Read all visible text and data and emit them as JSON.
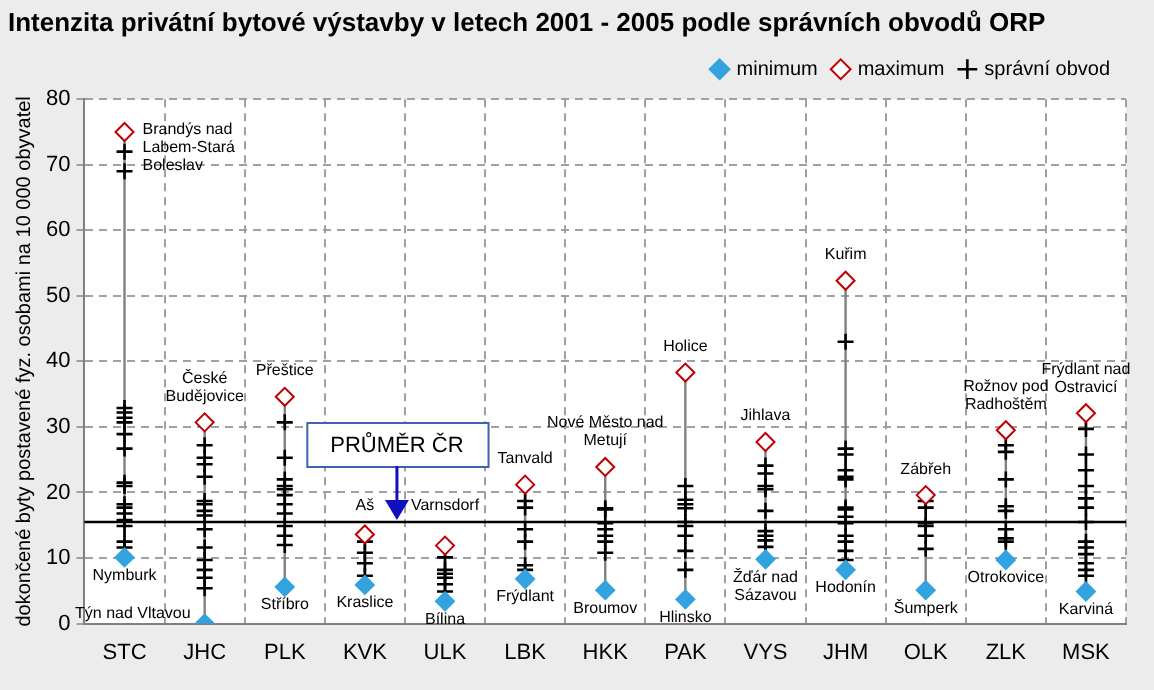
{
  "chart_data": {
    "type": "scatter",
    "title": "Intenzita privátní bytové výstavby v letech 2001 - 2005 podle správních obvodů ORP",
    "ylabel": "dokončené byty postavené fyz. osobami na 10 000 obyvatel",
    "categories": [
      "STC",
      "JHC",
      "PLK",
      "KVK",
      "ULK",
      "LBK",
      "HKK",
      "PAK",
      "VYS",
      "JHM",
      "OLK",
      "ZLK",
      "MSK"
    ],
    "ylim": [
      0,
      80
    ],
    "yticks": [
      0,
      10,
      20,
      30,
      40,
      50,
      60,
      70,
      80
    ],
    "grid": true,
    "legend": "top right",
    "series": [
      {
        "name": "minimum",
        "color": "#33a3e0",
        "marker": "diamond",
        "values": [
          10.1,
          0,
          5.6,
          5.9,
          3.4,
          6.8,
          5.1,
          3.7,
          9.8,
          8.2,
          5.1,
          9.7,
          4.9
        ]
      },
      {
        "name": "maximum",
        "color": "#c00000",
        "marker": "diamond",
        "values": [
          75,
          30.7,
          34.6,
          13.6,
          11.9,
          21.2,
          23.9,
          38.3,
          27.7,
          52.3,
          19.6,
          29.5,
          32.1
        ]
      },
      {
        "name": "správní obvod",
        "color": "#000000",
        "marker": "cross",
        "x": [
          "STC",
          "STC",
          "STC",
          "STC",
          "STC",
          "STC",
          "STC",
          "STC",
          "STC",
          "STC",
          "STC",
          "STC",
          "STC",
          "STC",
          "STC",
          "STC",
          "STC",
          "JHC",
          "JHC",
          "JHC",
          "JHC",
          "JHC",
          "JHC",
          "JHC",
          "JHC",
          "JHC",
          "JHC",
          "JHC",
          "JHC",
          "JHC",
          "JHC",
          "PLK",
          "PLK",
          "PLK",
          "PLK",
          "PLK",
          "PLK",
          "PLK",
          "PLK",
          "PLK",
          "PLK",
          "PLK",
          "KVK",
          "KVK",
          "KVK",
          "KVK",
          "ULK",
          "ULK",
          "ULK",
          "ULK",
          "ULK",
          "ULK",
          "LBK",
          "LBK",
          "LBK",
          "LBK",
          "LBK",
          "LBK",
          "HKK",
          "HKK",
          "HKK",
          "HKK",
          "HKK",
          "HKK",
          "HKK",
          "PAK",
          "PAK",
          "PAK",
          "PAK",
          "PAK",
          "PAK",
          "PAK",
          "PAK",
          "PAK",
          "VYS",
          "VYS",
          "VYS",
          "VYS",
          "VYS",
          "VYS",
          "VYS",
          "VYS",
          "VYS",
          "JHM",
          "JHM",
          "JHM",
          "JHM",
          "JHM",
          "JHM",
          "JHM",
          "JHM",
          "JHM",
          "JHM",
          "JHM",
          "JHM",
          "JHM",
          "JHM",
          "OLK",
          "OLK",
          "OLK",
          "OLK",
          "OLK",
          "OLK",
          "ZLK",
          "ZLK",
          "ZLK",
          "ZLK",
          "ZLK",
          "ZLK",
          "ZLK",
          "ZLK",
          "MSK",
          "MSK",
          "MSK",
          "MSK",
          "MSK",
          "MSK",
          "MSK",
          "MSK",
          "MSK",
          "MSK",
          "MSK",
          "MSK",
          "MSK"
        ],
        "values": [
          72,
          69,
          32.9,
          32.2,
          31.4,
          30.7,
          28.9,
          26.7,
          21.5,
          21,
          18.2,
          17.7,
          16.8,
          15.8,
          14.9,
          12.5,
          11.6,
          27.2,
          25.3,
          24.3,
          22.4,
          18.7,
          18.2,
          17.2,
          16.5,
          14.4,
          11.6,
          9.7,
          8.2,
          7,
          5.4,
          30.7,
          25.3,
          22,
          21,
          20.5,
          19.6,
          18.2,
          16.8,
          14.9,
          13.4,
          12,
          12.5,
          10.8,
          9.2,
          7.3,
          10.1,
          8.2,
          7.6,
          7,
          6,
          4.9,
          18.7,
          17.7,
          14.4,
          12.5,
          8.9,
          8.2,
          17.6,
          17.4,
          15.3,
          14.4,
          13.4,
          12.5,
          10.8,
          21,
          18.9,
          18.2,
          17.6,
          15.5,
          14.9,
          13.4,
          11.1,
          8.2,
          24.1,
          22.9,
          21,
          20.5,
          17.2,
          14.1,
          13.4,
          12.7,
          11.7,
          43,
          26.7,
          25.8,
          23.4,
          22.4,
          22,
          17.7,
          17.4,
          16.3,
          15.3,
          13.4,
          12.5,
          11.1,
          9.7,
          18.7,
          17.7,
          15.3,
          14.9,
          13.4,
          11.4,
          27.2,
          26.2,
          22,
          17.9,
          17.2,
          14.4,
          13,
          12.5,
          29.7,
          25.8,
          23.4,
          21,
          19.1,
          17.7,
          15.5,
          12.5,
          11.6,
          10.6,
          9.2,
          8.2,
          7.3
        ]
      }
    ],
    "ref_lines": [
      {
        "axis": "y",
        "value": 15.5,
        "label": "PRŮMĚR ČR"
      }
    ],
    "annotations": [
      {
        "text": "Brandýs nad Labem-Stará Boleslav",
        "x": "STC",
        "y": 75
      },
      {
        "text": "Nymburk",
        "x": "STC",
        "y": 10.1
      },
      {
        "text": "České Budějovice",
        "x": "JHC",
        "y": 30.7
      },
      {
        "text": "Týn nad Vltavou",
        "x": "JHC",
        "y": 0
      },
      {
        "text": "Přeštice",
        "x": "PLK",
        "y": 34.6
      },
      {
        "text": "Stříbro",
        "x": "PLK",
        "y": 5.6
      },
      {
        "text": "Aš",
        "x": "KVK",
        "y": 13.6
      },
      {
        "text": "Kraslice",
        "x": "KVK",
        "y": 5.9
      },
      {
        "text": "Varnsdorf",
        "x": "ULK",
        "y": 11.9
      },
      {
        "text": "Bílina",
        "x": "ULK",
        "y": 3.4
      },
      {
        "text": "Tanvald",
        "x": "LBK",
        "y": 21.2
      },
      {
        "text": "Frýdlant",
        "x": "LBK",
        "y": 6.8
      },
      {
        "text": "Nové Město nad Metují",
        "x": "HKK",
        "y": 23.9
      },
      {
        "text": "Broumov",
        "x": "HKK",
        "y": 5.1
      },
      {
        "text": "Holice",
        "x": "PAK",
        "y": 38.3
      },
      {
        "text": "Hlinsko",
        "x": "PAK",
        "y": 3.7
      },
      {
        "text": "Jihlava",
        "x": "VYS",
        "y": 27.7
      },
      {
        "text": "Žďár nad Sázavou",
        "x": "VYS",
        "y": 9.8
      },
      {
        "text": "Kuřim",
        "x": "JHM",
        "y": 52.3
      },
      {
        "text": "Hodonín",
        "x": "JHM",
        "y": 8.2
      },
      {
        "text": "Zábřeh",
        "x": "OLK",
        "y": 19.6
      },
      {
        "text": "Šumperk",
        "x": "OLK",
        "y": 5.1
      },
      {
        "text": "Rožnov pod Radhoštěm",
        "x": "ZLK",
        "y": 29.5
      },
      {
        "text": "Otrokovice",
        "x": "ZLK",
        "y": 9.7
      },
      {
        "text": "Frýdlant nad Ostravicí",
        "x": "MSK",
        "y": 32.1
      },
      {
        "text": "Karviná",
        "x": "MSK",
        "y": 4.9
      }
    ]
  }
}
